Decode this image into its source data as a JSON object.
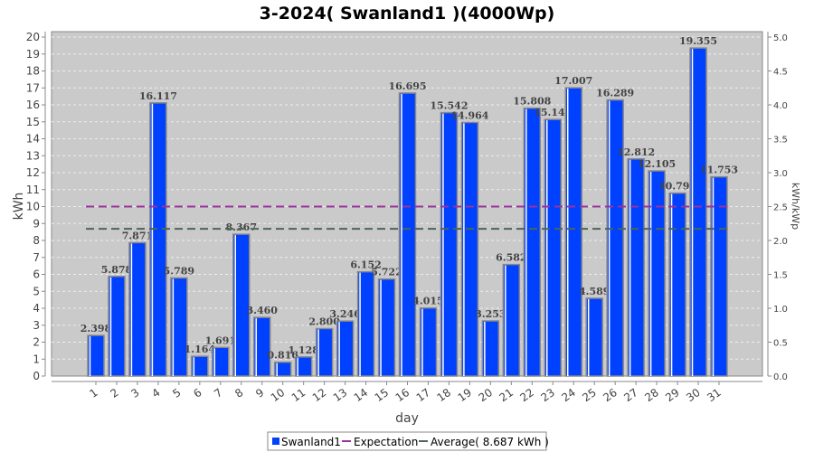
{
  "chart_data": {
    "type": "bar",
    "title": "3-2024( Swanland1 )(4000Wp)",
    "xlabel": "day",
    "ylabel": "kWh",
    "y2label": "kWh/kWp",
    "ylim": [
      0,
      20
    ],
    "y2lim": [
      0,
      5
    ],
    "yticks": [
      "0",
      "1",
      "2",
      "3",
      "4",
      "5",
      "6",
      "7",
      "8",
      "9",
      "10",
      "11",
      "12",
      "13",
      "14",
      "15",
      "16",
      "17",
      "18",
      "19",
      "20"
    ],
    "y2ticks": [
      "0.0",
      "0.5",
      "1.0",
      "1.5",
      "2.0",
      "2.5",
      "3.0",
      "3.5",
      "4.0",
      "4.5",
      "5.0"
    ],
    "grid": true,
    "categories": [
      "1",
      "2",
      "3",
      "4",
      "5",
      "6",
      "7",
      "8",
      "9",
      "10",
      "11",
      "12",
      "13",
      "14",
      "15",
      "16",
      "17",
      "18",
      "19",
      "20",
      "21",
      "22",
      "23",
      "24",
      "25",
      "26",
      "27",
      "28",
      "29",
      "30",
      "31"
    ],
    "series": [
      {
        "name": "Swanland1",
        "color": "#0040ff",
        "values": [
          2.398,
          5.878,
          7.871,
          16.117,
          5.789,
          1.164,
          1.691,
          8.367,
          3.46,
          0.816,
          1.128,
          2.8,
          3.246,
          6.152,
          5.722,
          16.695,
          4.015,
          15.542,
          14.964,
          3.253,
          6.582,
          15.808,
          15.14,
          17.007,
          4.589,
          16.289,
          12.812,
          12.105,
          10.792,
          19.355,
          11.753
        ],
        "labels": [
          "2.398",
          "5.878",
          "7.871",
          "16.117",
          "5.789",
          "1.164",
          "1.691",
          "8.367",
          "3.460",
          "0.816",
          "1.128",
          "2.800",
          "3.246",
          "6.152",
          "5.722",
          "16.695",
          "4.015",
          "15.542",
          "14.964",
          "3.253",
          "6.582",
          "15.808",
          "15.140",
          "17.007",
          "4.589",
          "16.289",
          "12.812",
          "12.105",
          "10.792",
          "19.355",
          "11.753"
        ]
      }
    ],
    "lines": [
      {
        "name": "Expectation",
        "value": 10,
        "color": "#993399"
      },
      {
        "name": "Average( 8.687 kWh )",
        "value": 8.687,
        "color": "#4d6655"
      }
    ],
    "legend": {
      "placement": "bottom",
      "items": [
        "Swanland1",
        "Expectation",
        "Average( 8.687 kWh )"
      ]
    }
  }
}
